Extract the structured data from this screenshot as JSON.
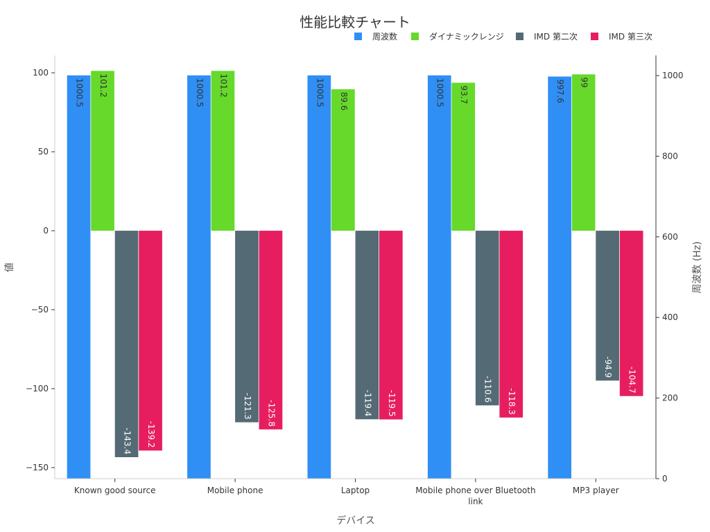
{
  "chart_data": {
    "type": "bar",
    "title": "性能比較チャート",
    "xlabel": "デバイス",
    "ylabel": "値",
    "y2label": "周波数 (Hz)",
    "categories": [
      "Known good source",
      "Mobile phone",
      "Laptop",
      "Mobile phone over Bluetooth link",
      "MP3 player"
    ],
    "category_lines": [
      [
        "Known good source"
      ],
      [
        "Mobile phone"
      ],
      [
        "Laptop"
      ],
      [
        "Mobile phone over Bluetooth",
        "link"
      ],
      [
        "MP3 player"
      ]
    ],
    "ylim": [
      -157,
      111
    ],
    "y2lim": [
      0,
      1050
    ],
    "yticks": [
      100,
      50,
      0,
      -50,
      -100,
      -150
    ],
    "yticklabels": [
      "100",
      "50",
      "0",
      "−50",
      "−100",
      "−150"
    ],
    "y2ticks": [
      1000,
      800,
      600,
      400,
      200,
      0
    ],
    "y2ticklabels": [
      "1000",
      "800",
      "600",
      "400",
      "200",
      "0"
    ],
    "legend_position": "top-right",
    "grid": false,
    "series": [
      {
        "name": "周波数",
        "axis": "right",
        "color": "#2f8ff5",
        "label_color": "#333333",
        "values": [
          1000.5,
          1000.5,
          1000.5,
          1000.5,
          997.6
        ],
        "labels": [
          "1000.5",
          "1000.5",
          "1000.5",
          "1000.5",
          "997.6"
        ]
      },
      {
        "name": "ダイナミックレンジ",
        "axis": "left",
        "color": "#66d92a",
        "label_color": "#333333",
        "values": [
          101.2,
          101.2,
          89.6,
          93.7,
          99
        ],
        "labels": [
          "101.2",
          "101.2",
          "89.6",
          "93.7",
          "99"
        ]
      },
      {
        "name": "IMD 第二次",
        "axis": "left",
        "color": "#546a74",
        "label_color": "#ffffff",
        "values": [
          -143.4,
          -121.3,
          -119.4,
          -110.6,
          -94.9
        ],
        "labels": [
          "-143.4",
          "-121.3",
          "-119.4",
          "-110.6",
          "-94.9"
        ]
      },
      {
        "name": "IMD 第三次",
        "axis": "left",
        "color": "#e61e5f",
        "label_color": "#ffffff",
        "values": [
          -139.2,
          -125.8,
          -119.5,
          -118.3,
          -104.7
        ],
        "labels": [
          "-139.2",
          "-125.8",
          "-119.5",
          "-118.3",
          "-104.7"
        ]
      }
    ]
  }
}
